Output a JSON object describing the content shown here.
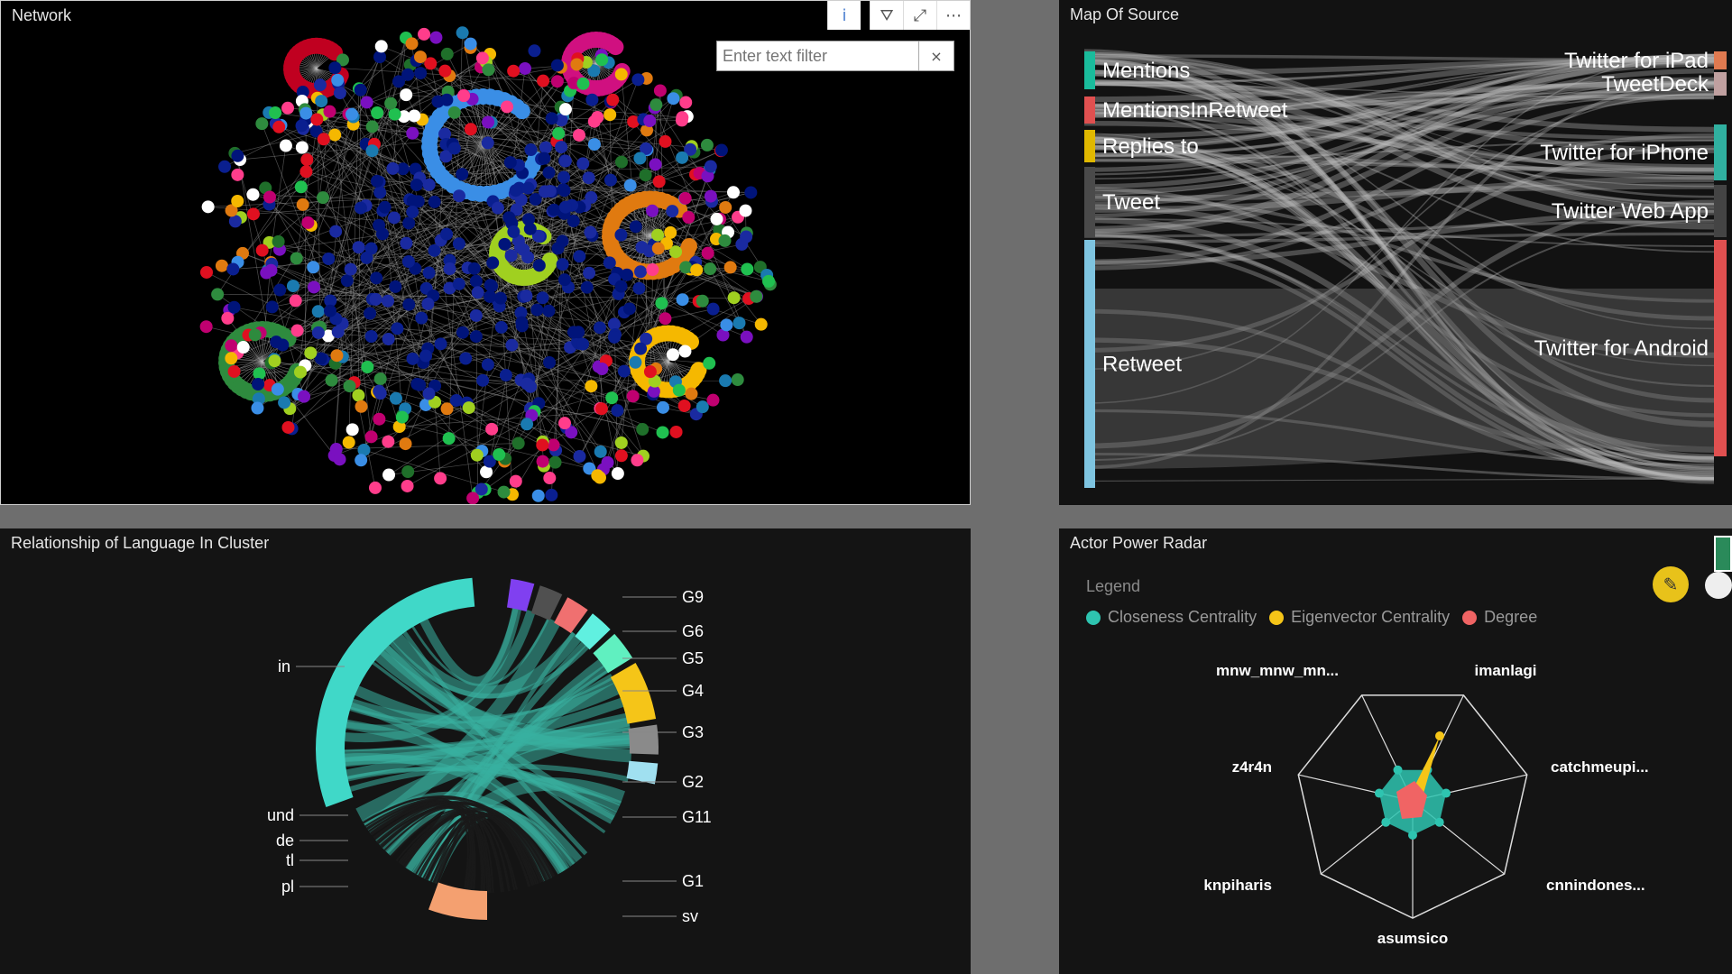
{
  "network": {
    "title": "Network",
    "filter_placeholder": "Enter text filter",
    "filter_clear": "×",
    "toolbar": {
      "info": "i",
      "filter": "⛛",
      "expand": "⤢",
      "more": "⋯"
    }
  },
  "source": {
    "title": "Map Of Source",
    "left_nodes": [
      {
        "label": "Mentions",
        "color": "#1abc9c"
      },
      {
        "label": "MentionsInRetweet",
        "color": "#e05050"
      },
      {
        "label": "Replies to",
        "color": "#e0b800"
      },
      {
        "label": "Tweet",
        "color": "#4a4a4a"
      },
      {
        "label": "Retweet",
        "color": "#7ec4e0"
      }
    ],
    "right_nodes": [
      {
        "label": "Twitter for iPad",
        "color": "#e07a50"
      },
      {
        "label": "TweetDeck",
        "color": "#c0a0a0"
      },
      {
        "label": "Twitter for iPhone",
        "color": "#30b0a0"
      },
      {
        "label": "Twitter Web App",
        "color": "#444"
      },
      {
        "label": "Twitter for Android",
        "color": "#e05050"
      }
    ]
  },
  "language": {
    "title": "Relationship of Language In Cluster",
    "left_labels": [
      "in",
      "und",
      "de",
      "tl",
      "pl"
    ],
    "right_labels": [
      "G9",
      "G6",
      "G5",
      "G4",
      "G3",
      "G2",
      "G11",
      "G1",
      "sv"
    ]
  },
  "radar": {
    "title": "Actor Power Radar",
    "legend_title": "Legend",
    "legend": [
      {
        "label": "Closeness Centrality",
        "color": "#2ec4b0"
      },
      {
        "label": "Eigenvector Centrality",
        "color": "#f5c518"
      },
      {
        "label": "Degree",
        "color": "#f06464"
      }
    ],
    "axes": [
      "imanlagi",
      "catchmeupi...",
      "cnnindones...",
      "asumsico",
      "knpiharis",
      "z4r4n",
      "mnw_mnw_mn..."
    ],
    "edit_icon": "✎"
  }
}
